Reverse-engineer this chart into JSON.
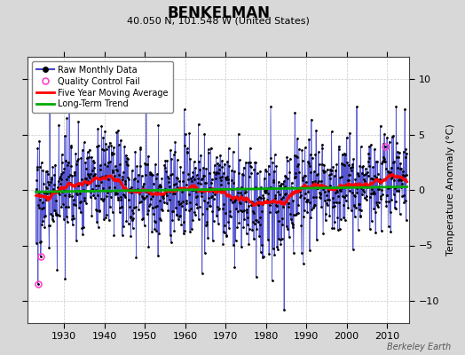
{
  "title": "BENKELMAN",
  "subtitle": "40.050 N, 101.548 W (United States)",
  "ylabel": "Temperature Anomaly (°C)",
  "watermark": "Berkeley Earth",
  "background_color": "#d8d8d8",
  "plot_bg_color": "#ffffff",
  "grid_color": "#c8c8c8",
  "raw_line_color": "#4444cc",
  "raw_dot_color": "#000000",
  "moving_avg_color": "#ff0000",
  "trend_color": "#00aa00",
  "qc_fail_color": "#ff44cc",
  "ylim": [
    -12,
    12
  ],
  "xlim_start": 1921,
  "xlim_end": 2015.5,
  "xticks": [
    1930,
    1940,
    1950,
    1960,
    1970,
    1980,
    1990,
    2000,
    2010
  ],
  "yticks": [
    -10,
    -5,
    0,
    5,
    10
  ],
  "data_start_year": 1923,
  "data_end_year": 2014,
  "seed": 17
}
